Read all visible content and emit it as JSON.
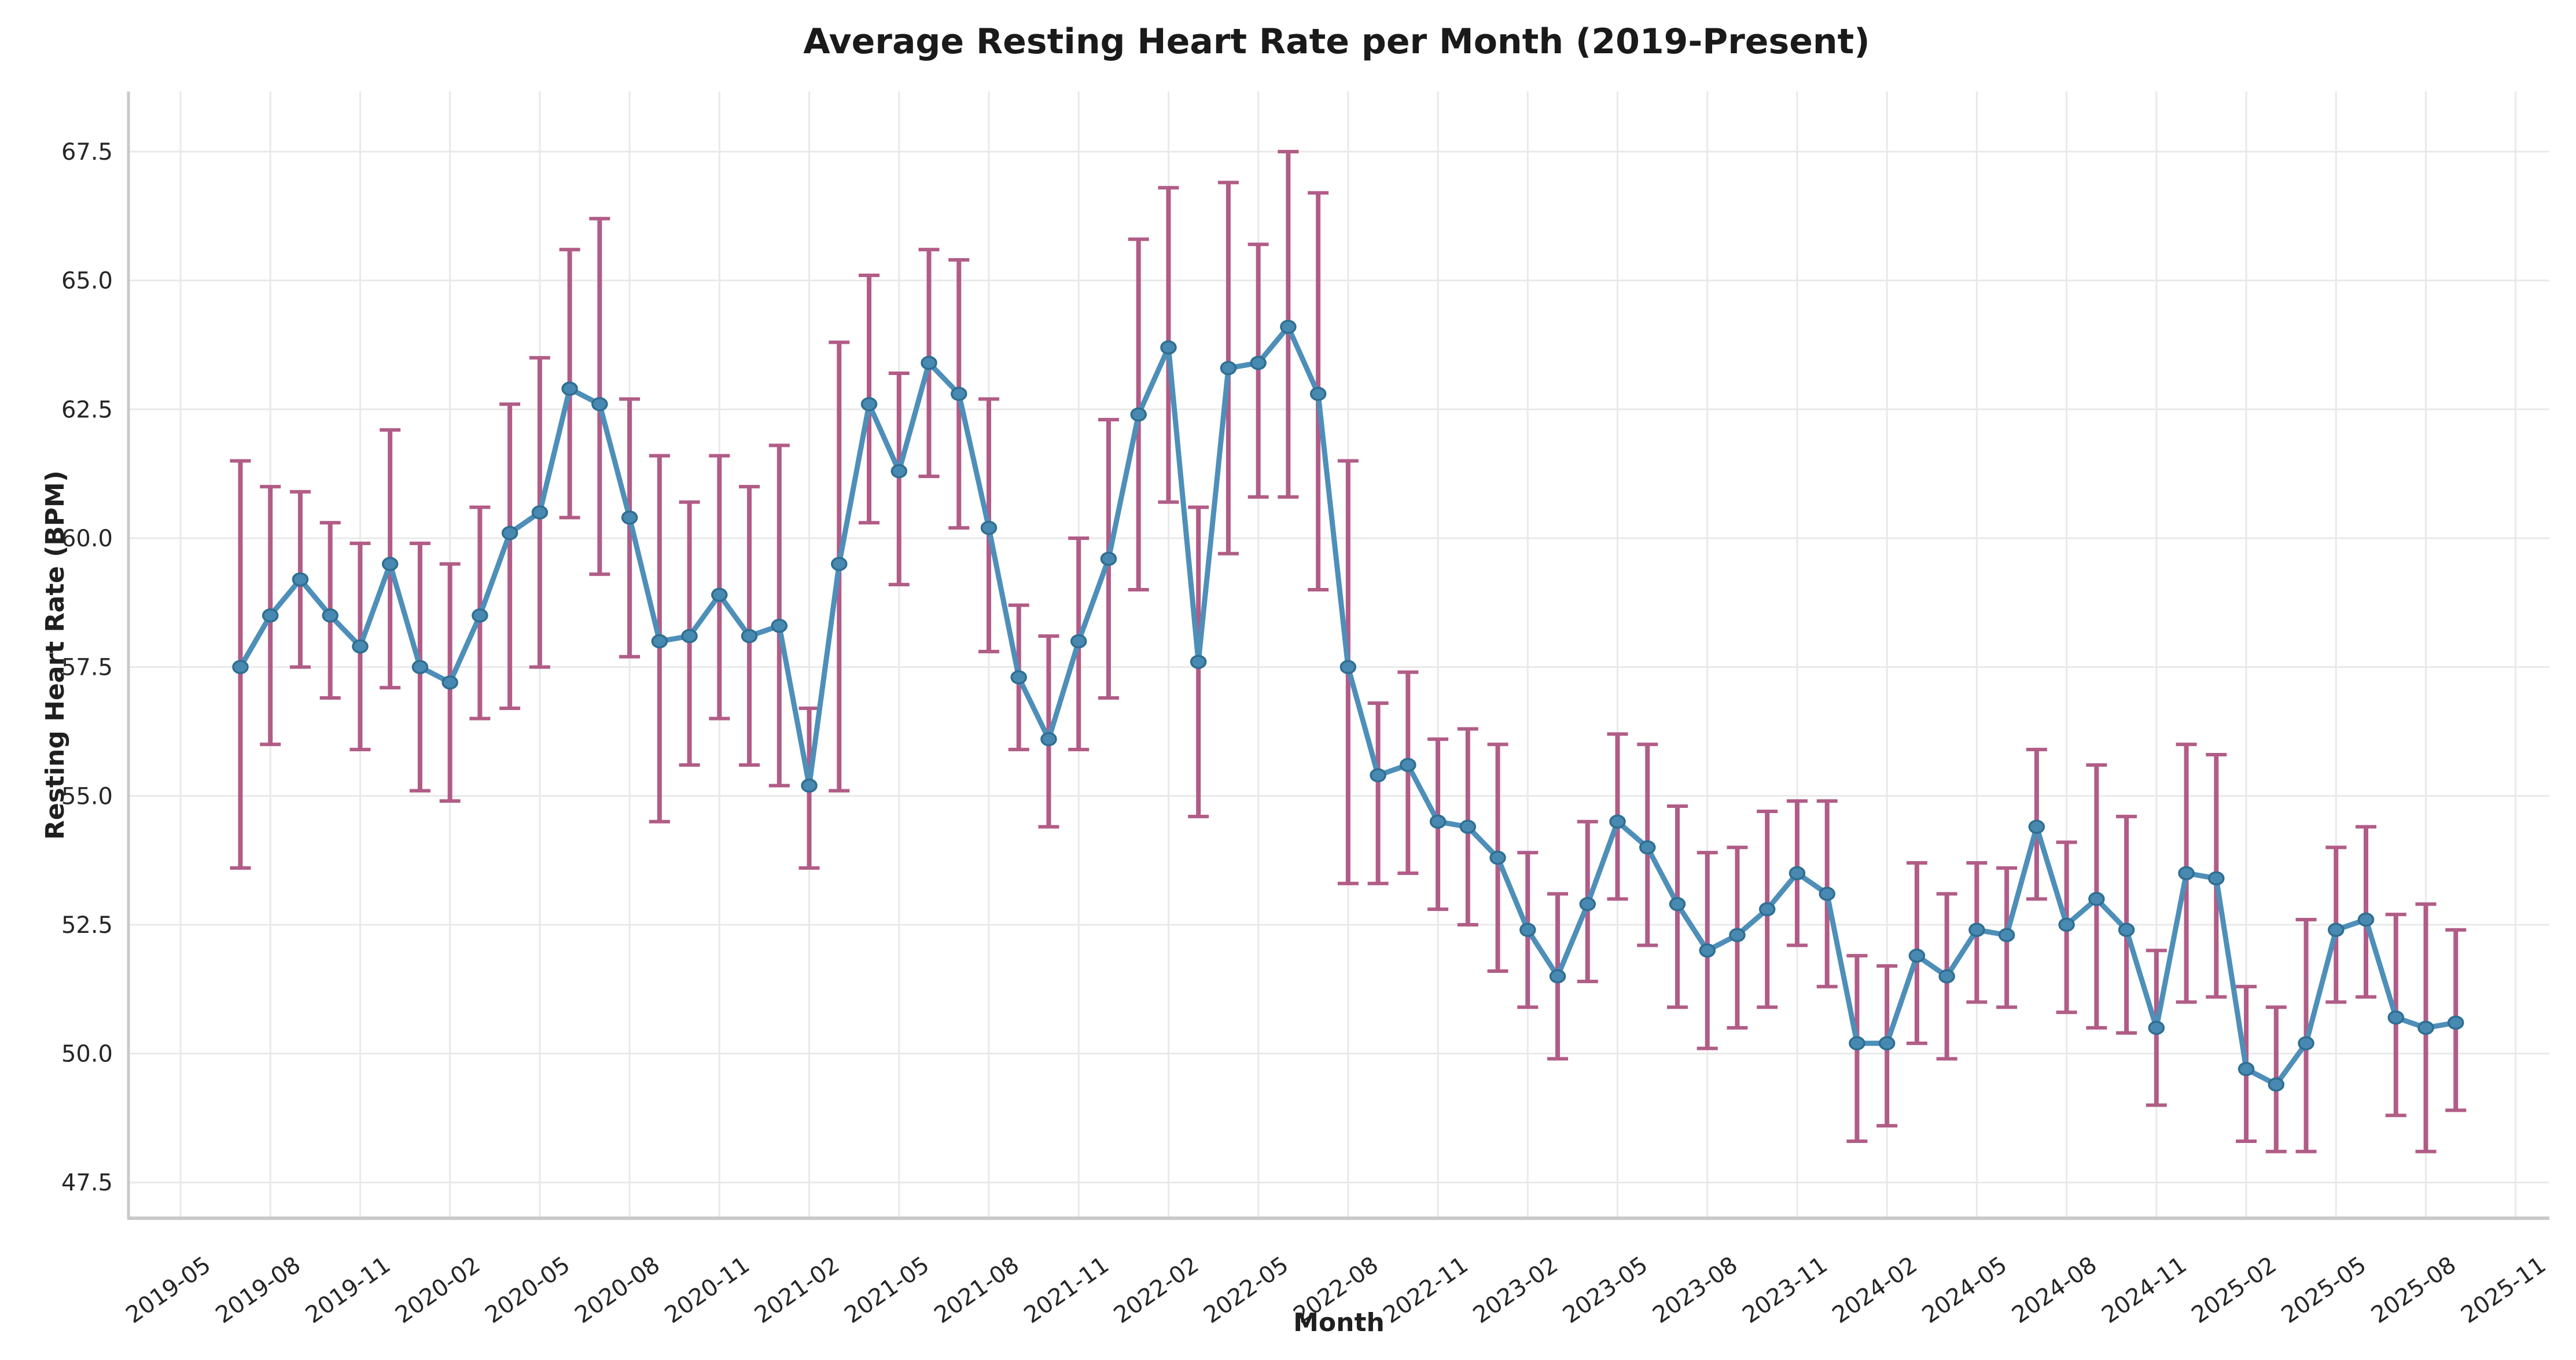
{
  "title": "Average Resting Heart Rate per Month (2019-Present)",
  "x_axis": {
    "label": "Month",
    "tick_labels": [
      "2019-05",
      "2019-08",
      "2019-11",
      "2020-02",
      "2020-05",
      "2020-08",
      "2020-11",
      "2021-02",
      "2021-05",
      "2021-08",
      "2021-11",
      "2022-02",
      "2022-05",
      "2022-08",
      "2022-11",
      "2023-02",
      "2023-05",
      "2023-08",
      "2023-11",
      "2024-02",
      "2024-05",
      "2024-08",
      "2024-11",
      "2025-02",
      "2025-05",
      "2025-08",
      "2025-11"
    ]
  },
  "y_axis": {
    "label": "Resting Heart Rate (BPM)",
    "tick_labels": [
      "47.5",
      "50.0",
      "52.5",
      "55.0",
      "57.5",
      "60.0",
      "62.5",
      "65.0",
      "67.5"
    ]
  },
  "chart_data": {
    "type": "line",
    "title": "Average Resting Heart Rate per Month (2019-Present)",
    "xlabel": "Month",
    "ylabel": "Resting Heart Rate (BPM)",
    "grid": true,
    "legend_position": "none",
    "ylim": [
      46.7,
      68.6
    ],
    "x_first_tick": "2019-05",
    "x_last_tick": "2025-11",
    "x": [
      "2019-07",
      "2019-08",
      "2019-09",
      "2019-10",
      "2019-11",
      "2019-12",
      "2020-01",
      "2020-02",
      "2020-03",
      "2020-04",
      "2020-05",
      "2020-06",
      "2020-07",
      "2020-08",
      "2020-09",
      "2020-10",
      "2020-11",
      "2020-12",
      "2021-01",
      "2021-02",
      "2021-03",
      "2021-04",
      "2021-05",
      "2021-06",
      "2021-07",
      "2021-08",
      "2021-09",
      "2021-10",
      "2021-11",
      "2021-12",
      "2022-01",
      "2022-02",
      "2022-03",
      "2022-04",
      "2022-05",
      "2022-06",
      "2022-07",
      "2022-08",
      "2022-09",
      "2022-10",
      "2022-11",
      "2022-12",
      "2023-01",
      "2023-02",
      "2023-03",
      "2023-04",
      "2023-05",
      "2023-06",
      "2023-07",
      "2023-08",
      "2023-09",
      "2023-10",
      "2023-11",
      "2023-12",
      "2024-01",
      "2024-02",
      "2024-03",
      "2024-04",
      "2024-05",
      "2024-06",
      "2024-07",
      "2024-08",
      "2024-09",
      "2024-10",
      "2024-11",
      "2024-12",
      "2025-01",
      "2025-02",
      "2025-03",
      "2025-04",
      "2025-05",
      "2025-06",
      "2025-07",
      "2025-08",
      "2025-09"
    ],
    "series": [
      {
        "name": "Average resting heart rate",
        "values": [
          57.5,
          58.5,
          59.2,
          58.5,
          57.9,
          59.5,
          57.5,
          57.2,
          58.5,
          60.1,
          60.5,
          62.9,
          62.6,
          60.4,
          58.0,
          58.1,
          58.9,
          58.1,
          58.3,
          55.2,
          59.5,
          62.6,
          61.3,
          63.4,
          62.8,
          60.2,
          57.3,
          56.1,
          58.0,
          59.6,
          62.4,
          63.7,
          57.6,
          63.3,
          63.4,
          64.1,
          62.8,
          57.5,
          55.4,
          55.6,
          54.5,
          54.4,
          53.8,
          52.4,
          51.5,
          52.9,
          54.5,
          54.0,
          52.9,
          52.0,
          52.3,
          52.8,
          53.5,
          53.1,
          50.2,
          50.2,
          51.9,
          51.5,
          52.4,
          52.3,
          54.4,
          52.5,
          53.0,
          52.4,
          50.5,
          53.5,
          53.4,
          49.7,
          49.4,
          50.2,
          52.4,
          52.6,
          50.7,
          50.5,
          50.6
        ],
        "err_low": [
          53.6,
          56.0,
          57.5,
          56.9,
          55.9,
          57.1,
          55.1,
          54.9,
          56.5,
          56.7,
          57.5,
          60.4,
          59.3,
          57.7,
          54.5,
          55.6,
          56.5,
          55.6,
          55.2,
          53.6,
          55.1,
          60.3,
          59.1,
          61.2,
          60.2,
          57.8,
          55.9,
          54.4,
          55.9,
          56.9,
          59.0,
          60.7,
          54.6,
          59.7,
          60.8,
          60.8,
          59.0,
          53.3,
          53.3,
          53.5,
          52.8,
          52.5,
          51.6,
          50.9,
          49.9,
          51.4,
          53.0,
          52.1,
          50.9,
          50.1,
          50.5,
          50.9,
          52.1,
          51.3,
          48.3,
          48.6,
          50.2,
          49.9,
          51.0,
          50.9,
          53.0,
          50.8,
          50.5,
          50.4,
          49.0,
          51.0,
          51.1,
          48.3,
          48.1,
          48.1,
          51.0,
          51.1,
          48.8,
          48.1,
          48.9
        ],
        "err_high": [
          61.5,
          61.0,
          60.9,
          60.3,
          59.9,
          62.1,
          59.9,
          59.5,
          60.6,
          62.6,
          63.5,
          65.6,
          66.2,
          62.7,
          61.6,
          60.7,
          61.6,
          61.0,
          61.8,
          56.7,
          63.8,
          65.1,
          63.2,
          65.6,
          65.4,
          62.7,
          58.7,
          58.1,
          60.0,
          62.3,
          65.8,
          66.8,
          60.6,
          66.9,
          65.7,
          67.5,
          66.7,
          61.5,
          56.8,
          57.4,
          56.1,
          56.3,
          56.0,
          53.9,
          53.1,
          54.5,
          56.2,
          56.0,
          54.8,
          53.9,
          54.0,
          54.7,
          54.9,
          54.9,
          51.9,
          51.7,
          53.7,
          53.1,
          53.7,
          53.6,
          55.9,
          54.1,
          55.6,
          54.6,
          52.0,
          56.0,
          55.8,
          51.3,
          50.9,
          52.6,
          54.0,
          54.4,
          52.7,
          52.9,
          52.4
        ]
      }
    ],
    "colors": {
      "line": "#4D8FB9",
      "marker_fill": "#4789B1",
      "marker_edge": "#2F6E92",
      "error_bar": "#B15C87",
      "gridline": "#E9E9E9",
      "spine": "#C9C9C9",
      "text": "#262626"
    }
  }
}
